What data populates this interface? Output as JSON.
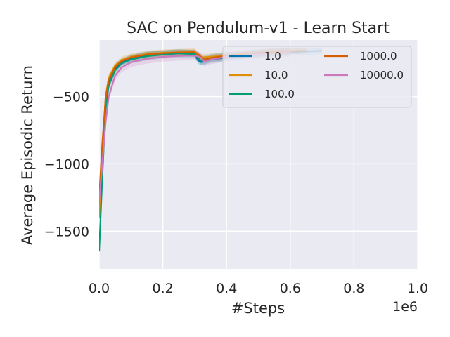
{
  "chart_data": {
    "type": "line",
    "title": "SAC on Pendulum-v1 - Learn Start",
    "xlabel": "#Steps",
    "ylabel": "Average Episodic Return",
    "x_multiplier_label": "1e6",
    "xlim": [
      0.0,
      1.0
    ],
    "ylim": [
      -1780,
      -80
    ],
    "x_ticks": [
      0.0,
      0.2,
      0.4,
      0.6,
      0.8,
      1.0
    ],
    "x_tick_labels": [
      "0.0",
      "0.2",
      "0.4",
      "0.6",
      "0.8",
      "1.0"
    ],
    "y_ticks": [
      -1500,
      -1000,
      -500
    ],
    "y_tick_labels": [
      "−1500",
      "−1000",
      "−500"
    ],
    "grid": true,
    "legend_position": "top-right",
    "legend_columns": 2,
    "background": "#eaeaf2",
    "series": [
      {
        "name": "1.0",
        "color": "#0173b2",
        "x": [
          0.0,
          0.01,
          0.02,
          0.03,
          0.05,
          0.07,
          0.1,
          0.15,
          0.2,
          0.25,
          0.3,
          0.31,
          0.32,
          0.35,
          0.4,
          0.45,
          0.5,
          0.55,
          0.6,
          0.65,
          0.7
        ],
        "y": [
          -1300,
          -900,
          -550,
          -400,
          -290,
          -245,
          -215,
          -190,
          -180,
          -175,
          -180,
          -230,
          -245,
          -225,
          -210,
          -195,
          -185,
          -175,
          -170,
          -165,
          -160
        ],
        "band": 25
      },
      {
        "name": "10.0",
        "color": "#de8f05",
        "x": [
          0.0,
          0.01,
          0.02,
          0.03,
          0.05,
          0.07,
          0.1,
          0.15,
          0.2,
          0.25,
          0.3,
          0.32,
          0.35,
          0.4,
          0.45,
          0.5,
          0.55,
          0.6,
          0.65
        ],
        "y": [
          -1400,
          -950,
          -500,
          -360,
          -270,
          -230,
          -205,
          -185,
          -175,
          -172,
          -168,
          -210,
          -205,
          -195,
          -185,
          -175,
          -168,
          -162,
          -158
        ],
        "band": 25
      },
      {
        "name": "100.0",
        "color": "#029e73",
        "x": [
          0.0,
          0.01,
          0.02,
          0.03,
          0.05,
          0.07,
          0.1,
          0.15,
          0.2,
          0.25,
          0.3,
          0.32,
          0.35,
          0.4,
          0.45,
          0.5,
          0.55,
          0.6
        ],
        "y": [
          -1650,
          -1100,
          -600,
          -420,
          -305,
          -255,
          -225,
          -200,
          -188,
          -180,
          -185,
          -235,
          -215,
          -200,
          -188,
          -178,
          -170,
          -163
        ],
        "band": 30
      },
      {
        "name": "1000.0",
        "color": "#d55e00",
        "x": [
          0.0,
          0.01,
          0.02,
          0.03,
          0.05,
          0.07,
          0.1,
          0.15,
          0.2,
          0.25,
          0.3,
          0.31,
          0.33,
          0.36,
          0.4,
          0.45,
          0.5,
          0.55,
          0.6,
          0.65
        ],
        "y": [
          -1250,
          -850,
          -520,
          -380,
          -280,
          -238,
          -210,
          -188,
          -178,
          -172,
          -170,
          -185,
          -225,
          -210,
          -198,
          -185,
          -175,
          -168,
          -162,
          -158
        ],
        "band": 20
      },
      {
        "name": "10000.0",
        "color": "#cc78bc",
        "x": [
          0.0,
          0.01,
          0.02,
          0.03,
          0.05,
          0.07,
          0.1,
          0.15,
          0.2,
          0.25,
          0.3,
          0.32,
          0.33,
          0.35,
          0.4,
          0.45,
          0.5,
          0.55,
          0.6
        ],
        "y": [
          -1280,
          -1000,
          -700,
          -500,
          -345,
          -285,
          -245,
          -220,
          -205,
          -198,
          -195,
          -210,
          -240,
          -225,
          -205,
          -195,
          -185,
          -178,
          -170
        ],
        "band": 35
      }
    ]
  }
}
